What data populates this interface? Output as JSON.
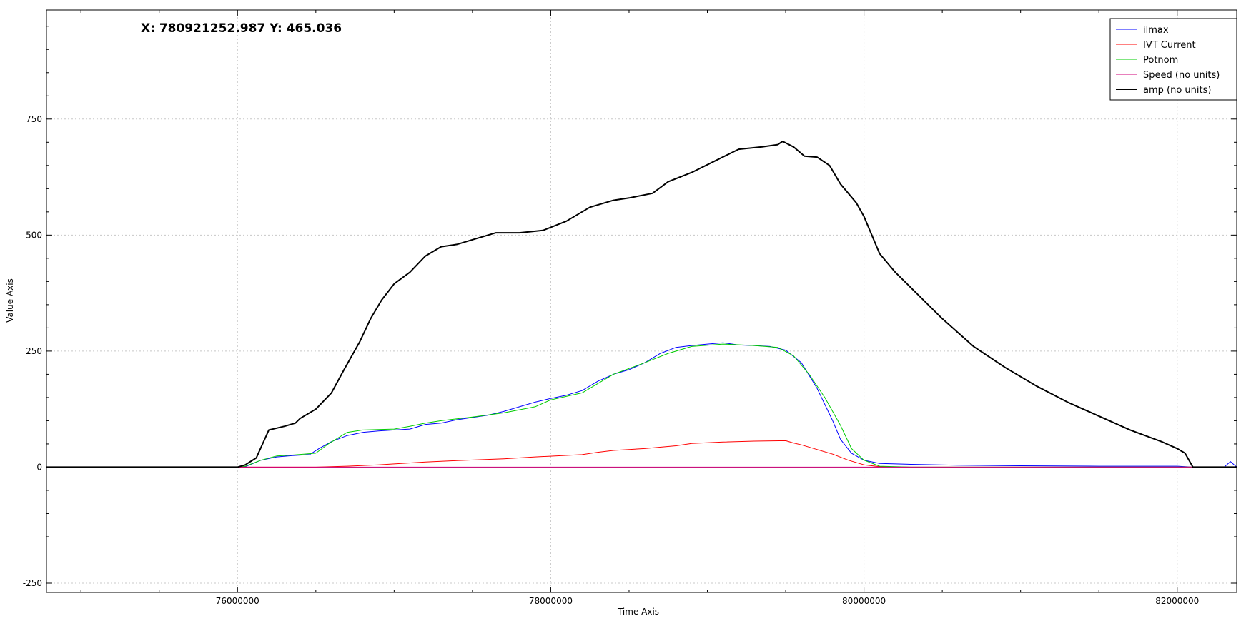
{
  "readout": "X: 780921252.987 Y: 465.036",
  "chart_data": {
    "type": "line",
    "xlabel": "Time Axis",
    "ylabel": "Value Axis",
    "xlim": [
      74780000,
      82380000
    ],
    "ylim": [
      -270,
      985
    ],
    "x_ticks": [
      76000000,
      78000000,
      80000000,
      82000000
    ],
    "y_ticks": [
      -250,
      0,
      250,
      500,
      750
    ],
    "grid": true,
    "legend_position": "top-right",
    "series": [
      {
        "name": "ilmax",
        "color": "#0000ff",
        "width": 1,
        "points": [
          [
            74780000,
            0
          ],
          [
            76000000,
            0
          ],
          [
            76050000,
            1
          ],
          [
            76150000,
            15
          ],
          [
            76250000,
            22
          ],
          [
            76350000,
            25
          ],
          [
            76460000,
            27
          ],
          [
            76520000,
            40
          ],
          [
            76600000,
            55
          ],
          [
            76700000,
            68
          ],
          [
            76800000,
            75
          ],
          [
            76900000,
            78
          ],
          [
            77000000,
            80
          ],
          [
            77100000,
            82
          ],
          [
            77200000,
            92
          ],
          [
            77300000,
            95
          ],
          [
            77400000,
            102
          ],
          [
            77500000,
            107
          ],
          [
            77600000,
            112
          ],
          [
            77700000,
            120
          ],
          [
            77800000,
            130
          ],
          [
            77900000,
            140
          ],
          [
            78000000,
            148
          ],
          [
            78100000,
            155
          ],
          [
            78200000,
            165
          ],
          [
            78300000,
            185
          ],
          [
            78400000,
            200
          ],
          [
            78500000,
            210
          ],
          [
            78600000,
            225
          ],
          [
            78700000,
            245
          ],
          [
            78800000,
            258
          ],
          [
            78900000,
            262
          ],
          [
            79000000,
            265
          ],
          [
            79100000,
            268
          ],
          [
            79200000,
            263
          ],
          [
            79300000,
            262
          ],
          [
            79400000,
            260
          ],
          [
            79500000,
            252
          ],
          [
            79600000,
            225
          ],
          [
            79700000,
            170
          ],
          [
            79800000,
            100
          ],
          [
            79850000,
            60
          ],
          [
            79920000,
            30
          ],
          [
            80000000,
            15
          ],
          [
            80100000,
            8
          ],
          [
            80300000,
            6
          ],
          [
            80600000,
            4
          ],
          [
            81000000,
            3
          ],
          [
            81500000,
            2
          ],
          [
            82000000,
            2
          ],
          [
            82100000,
            0
          ],
          [
            82300000,
            0
          ],
          [
            82340000,
            12
          ],
          [
            82380000,
            0
          ]
        ]
      },
      {
        "name": "IVT Current",
        "color": "#ff0000",
        "width": 1,
        "points": [
          [
            74780000,
            0
          ],
          [
            76200000,
            0
          ],
          [
            76500000,
            0
          ],
          [
            76700000,
            2
          ],
          [
            76900000,
            5
          ],
          [
            77000000,
            7
          ],
          [
            77200000,
            11
          ],
          [
            77400000,
            14
          ],
          [
            77700000,
            18
          ],
          [
            77900000,
            22
          ],
          [
            78200000,
            27
          ],
          [
            78300000,
            32
          ],
          [
            78400000,
            36
          ],
          [
            78600000,
            40
          ],
          [
            78800000,
            46
          ],
          [
            78900000,
            51
          ],
          [
            79100000,
            54
          ],
          [
            79300000,
            56
          ],
          [
            79500000,
            57
          ],
          [
            79550000,
            52
          ],
          [
            79600000,
            48
          ],
          [
            79700000,
            38
          ],
          [
            79800000,
            28
          ],
          [
            79900000,
            15
          ],
          [
            80000000,
            5
          ],
          [
            80100000,
            1
          ],
          [
            80300000,
            0
          ],
          [
            82380000,
            0
          ]
        ]
      },
      {
        "name": "Potnom",
        "color": "#00cc00",
        "width": 1,
        "points": [
          [
            74780000,
            0
          ],
          [
            76000000,
            0
          ],
          [
            76050000,
            2
          ],
          [
            76150000,
            15
          ],
          [
            76250000,
            24
          ],
          [
            76350000,
            26
          ],
          [
            76500000,
            30
          ],
          [
            76580000,
            50
          ],
          [
            76700000,
            75
          ],
          [
            76800000,
            80
          ],
          [
            77000000,
            82
          ],
          [
            77100000,
            88
          ],
          [
            77200000,
            95
          ],
          [
            77300000,
            100
          ],
          [
            77500000,
            108
          ],
          [
            77700000,
            117
          ],
          [
            77900000,
            130
          ],
          [
            78000000,
            145
          ],
          [
            78200000,
            160
          ],
          [
            78300000,
            180
          ],
          [
            78400000,
            200
          ],
          [
            78600000,
            225
          ],
          [
            78750000,
            245
          ],
          [
            78900000,
            260
          ],
          [
            79100000,
            265
          ],
          [
            79300000,
            262
          ],
          [
            79450000,
            258
          ],
          [
            79550000,
            240
          ],
          [
            79650000,
            200
          ],
          [
            79750000,
            150
          ],
          [
            79850000,
            90
          ],
          [
            79920000,
            40
          ],
          [
            80000000,
            15
          ],
          [
            80100000,
            2
          ],
          [
            80300000,
            0
          ],
          [
            82380000,
            0
          ]
        ]
      },
      {
        "name": "Speed (no units)",
        "color": "#d0007a",
        "width": 1,
        "points": [
          [
            74780000,
            0
          ],
          [
            82380000,
            0
          ]
        ]
      },
      {
        "name": "amp (no units)",
        "color": "#000000",
        "width": 2,
        "points": [
          [
            74780000,
            0
          ],
          [
            76000000,
            0
          ],
          [
            76050000,
            5
          ],
          [
            76120000,
            20
          ],
          [
            76200000,
            80
          ],
          [
            76300000,
            88
          ],
          [
            76370000,
            95
          ],
          [
            76400000,
            105
          ],
          [
            76500000,
            125
          ],
          [
            76600000,
            160
          ],
          [
            76680000,
            210
          ],
          [
            76780000,
            270
          ],
          [
            76850000,
            320
          ],
          [
            76920000,
            360
          ],
          [
            77000000,
            395
          ],
          [
            77100000,
            420
          ],
          [
            77200000,
            455
          ],
          [
            77300000,
            475
          ],
          [
            77400000,
            480
          ],
          [
            77500000,
            490
          ],
          [
            77650000,
            505
          ],
          [
            77800000,
            505
          ],
          [
            77950000,
            510
          ],
          [
            78100000,
            530
          ],
          [
            78250000,
            560
          ],
          [
            78400000,
            575
          ],
          [
            78500000,
            580
          ],
          [
            78650000,
            590
          ],
          [
            78750000,
            615
          ],
          [
            78900000,
            635
          ],
          [
            79050000,
            660
          ],
          [
            79200000,
            685
          ],
          [
            79350000,
            690
          ],
          [
            79450000,
            695
          ],
          [
            79480000,
            702
          ],
          [
            79550000,
            690
          ],
          [
            79620000,
            670
          ],
          [
            79700000,
            668
          ],
          [
            79780000,
            650
          ],
          [
            79850000,
            610
          ],
          [
            79950000,
            570
          ],
          [
            80000000,
            540
          ],
          [
            80100000,
            460
          ],
          [
            80200000,
            420
          ],
          [
            80350000,
            370
          ],
          [
            80500000,
            320
          ],
          [
            80700000,
            260
          ],
          [
            80900000,
            215
          ],
          [
            81100000,
            175
          ],
          [
            81300000,
            140
          ],
          [
            81500000,
            110
          ],
          [
            81700000,
            80
          ],
          [
            81900000,
            55
          ],
          [
            82000000,
            40
          ],
          [
            82050000,
            30
          ],
          [
            82100000,
            0
          ],
          [
            82380000,
            0
          ]
        ]
      }
    ]
  }
}
